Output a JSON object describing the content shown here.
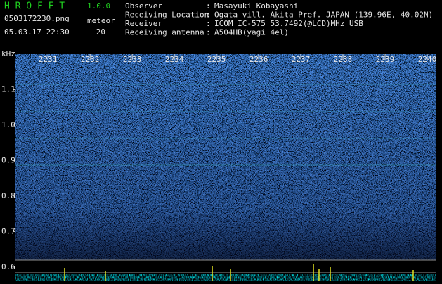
{
  "header": {
    "app": "H R O F F T",
    "version": "1.0.0",
    "file": "0503172230.png",
    "datetime": "05.03.17 22:30",
    "count_label": "meteor",
    "count": "20"
  },
  "info": [
    {
      "label": "Observer",
      "sep": ":",
      "value": "Masayuki Kobayashi"
    },
    {
      "label": "Receiving Location",
      "sep": ":",
      "value": "Ogata-vill. Akita-Pref. JAPAN (139.96E, 40.02N)"
    },
    {
      "label": "Receiver",
      "sep": ":",
      "value": "ICOM IC-575 53.7492(@LCD)MHz USB"
    },
    {
      "label": "Receiving antenna",
      "sep": ":",
      "value": "A504HB(yagi 4el)"
    }
  ],
  "chart_data": {
    "type": "spectrogram",
    "y_label": "kHz",
    "ylim": [
      0.6,
      1.2
    ],
    "yticks": [
      1.1,
      {
        "value": 1,
        "label": "1.0"
      },
      0.9,
      0.8,
      0.7,
      0.6
    ],
    "xlim": [
      2230.23,
      2240.2
    ],
    "xticks": [
      2231,
      2232,
      2233,
      2234,
      2235,
      2236,
      2237,
      2238,
      2239,
      2240
    ]
  }
}
